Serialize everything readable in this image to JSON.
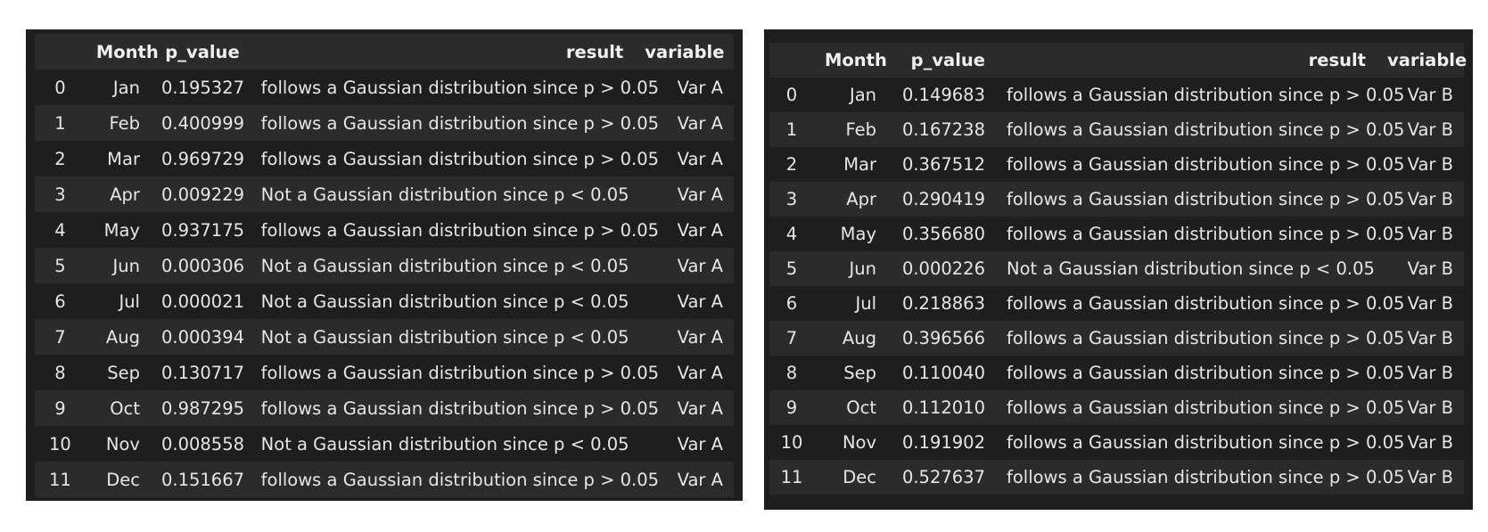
{
  "tables": {
    "left": {
      "columns": [
        "",
        "Month",
        "p_value",
        "result",
        "variable"
      ],
      "rows": [
        [
          "0",
          "Jan",
          "0.195327",
          "follows a Gaussian distribution since p > 0.05",
          "Var A"
        ],
        [
          "1",
          "Feb",
          "0.400999",
          "follows a Gaussian distribution since p > 0.05",
          "Var A"
        ],
        [
          "2",
          "Mar",
          "0.969729",
          "follows a Gaussian distribution since p > 0.05",
          "Var A"
        ],
        [
          "3",
          "Apr",
          "0.009229",
          "Not a Gaussian distribution since p < 0.05",
          "Var A"
        ],
        [
          "4",
          "May",
          "0.937175",
          "follows a Gaussian distribution since p > 0.05",
          "Var A"
        ],
        [
          "5",
          "Jun",
          "0.000306",
          "Not a Gaussian distribution since p < 0.05",
          "Var A"
        ],
        [
          "6",
          "Jul",
          "0.000021",
          "Not a Gaussian distribution since p < 0.05",
          "Var A"
        ],
        [
          "7",
          "Aug",
          "0.000394",
          "Not a Gaussian distribution since p < 0.05",
          "Var A"
        ],
        [
          "8",
          "Sep",
          "0.130717",
          "follows a Gaussian distribution since p > 0.05",
          "Var A"
        ],
        [
          "9",
          "Oct",
          "0.987295",
          "follows a Gaussian distribution since p > 0.05",
          "Var A"
        ],
        [
          "10",
          "Nov",
          "0.008558",
          "Not a Gaussian distribution since p < 0.05",
          "Var A"
        ],
        [
          "11",
          "Dec",
          "0.151667",
          "follows a Gaussian distribution since p > 0.05",
          "Var A"
        ]
      ]
    },
    "right": {
      "columns": [
        "",
        "Month",
        "p_value",
        "result",
        "variable"
      ],
      "rows": [
        [
          "0",
          "Jan",
          "0.149683",
          "follows a Gaussian distribution since p > 0.05",
          "Var B"
        ],
        [
          "1",
          "Feb",
          "0.167238",
          "follows a Gaussian distribution since p > 0.05",
          "Var B"
        ],
        [
          "2",
          "Mar",
          "0.367512",
          "follows a Gaussian distribution since p > 0.05",
          "Var B"
        ],
        [
          "3",
          "Apr",
          "0.290419",
          "follows a Gaussian distribution since p > 0.05",
          "Var B"
        ],
        [
          "4",
          "May",
          "0.356680",
          "follows a Gaussian distribution since p > 0.05",
          "Var B"
        ],
        [
          "5",
          "Jun",
          "0.000226",
          "Not a Gaussian distribution since p < 0.05",
          "Var B"
        ],
        [
          "6",
          "Jul",
          "0.218863",
          "follows a Gaussian distribution since p > 0.05",
          "Var B"
        ],
        [
          "7",
          "Aug",
          "0.396566",
          "follows a Gaussian distribution since p > 0.05",
          "Var B"
        ],
        [
          "8",
          "Sep",
          "0.110040",
          "follows a Gaussian distribution since p > 0.05",
          "Var B"
        ],
        [
          "9",
          "Oct",
          "0.112010",
          "follows a Gaussian distribution since p > 0.05",
          "Var B"
        ],
        [
          "10",
          "Nov",
          "0.191902",
          "follows a Gaussian distribution since p > 0.05",
          "Var B"
        ],
        [
          "11",
          "Dec",
          "0.527637",
          "follows a Gaussian distribution since p > 0.05",
          "Var B"
        ]
      ]
    }
  }
}
